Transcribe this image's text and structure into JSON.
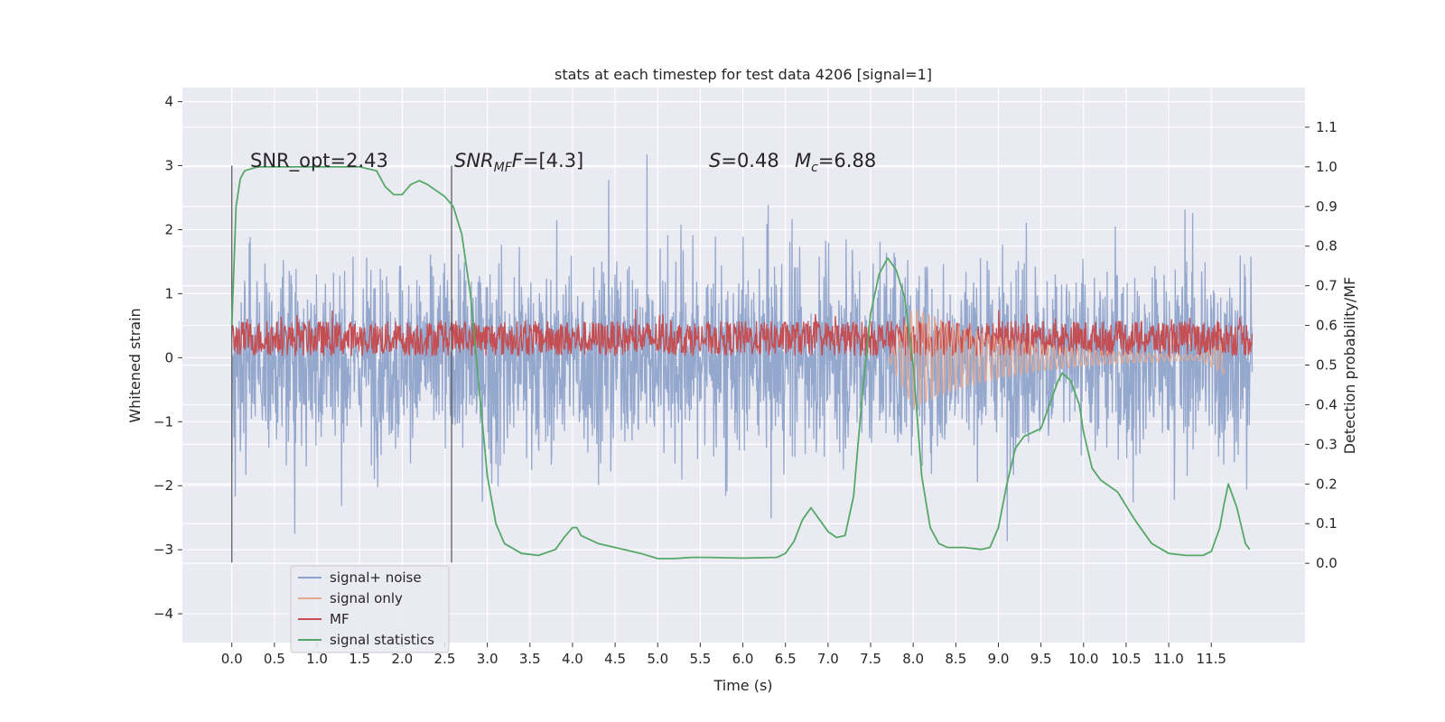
{
  "chart_data": {
    "type": "line",
    "title": "stats at each timestep for test data 4206 [signal=1]",
    "xlabel": "Time (s)",
    "ylabel": "Whitened strain",
    "ylabel_right": "Detection probability/MF",
    "xlim": [
      -0.58,
      12.6
    ],
    "ylim": [
      -4.45,
      4.22
    ],
    "ylim_right": [
      -0.2,
      1.2
    ],
    "x_ticks": [
      0.0,
      0.5,
      1.0,
      1.5,
      2.0,
      2.5,
      3.0,
      3.5,
      4.0,
      4.5,
      5.0,
      5.5,
      6.0,
      6.5,
      7.0,
      7.5,
      8.0,
      8.5,
      9.0,
      9.5,
      10.0,
      10.5,
      11.0,
      11.5
    ],
    "x_tick_labels": [
      "0.0",
      "0.5",
      "1.0",
      "1.5",
      "2.0",
      "2.5",
      "3.0",
      "3.5",
      "4.0",
      "4.5",
      "5.0",
      "5.5",
      "6.0",
      "6.5",
      "7.0",
      "7.5",
      "8.0",
      "8.5",
      "9.0",
      "9.5",
      "10.0",
      "10.5",
      "11.0",
      "11.5"
    ],
    "y_ticks": [
      4,
      3,
      2,
      1,
      0,
      -1,
      -2,
      -3,
      -4
    ],
    "y_tick_labels": [
      "4",
      "3",
      "2",
      "1",
      "0",
      "−1",
      "−2",
      "−3",
      "−4"
    ],
    "y_right_ticks": [
      1.1,
      1.0,
      0.9,
      0.8,
      0.7,
      0.6,
      0.5,
      0.4,
      0.3,
      0.2,
      0.1,
      0.0
    ],
    "y_right_tick_labels": [
      "1.1",
      "1.0",
      "0.9",
      "0.8",
      "0.7",
      "0.6",
      "0.5",
      "0.4",
      "0.3",
      "0.2",
      "0.1",
      "0.0"
    ],
    "grid": true,
    "legend_position": "lower-left",
    "vlines": [
      {
        "x": 0.0,
        "ymin": -3.2,
        "ymax": 3.0
      },
      {
        "x": 2.58,
        "ymin": -3.2,
        "ymax": 3.0
      }
    ],
    "annotations": {
      "snr_opt": "SNR_opt=2.43",
      "snr_mf_sym": "SNR",
      "snr_mf_sub": "MF",
      "snr_mf_sym2": "F",
      "snr_mf_val": "=[4.3]",
      "s_sym": "S",
      "s_val": "=0.48",
      "mc_sym": "M",
      "mc_sub": "c",
      "mc_val": "=6.88"
    },
    "series": [
      {
        "name": "signal+ noise",
        "color": "#8fa3ca",
        "axis": "left",
        "x_range": [
          0.0,
          11.98
        ],
        "envelope": "noise, approx. ±2 typical, spikes to about ±3.8"
      },
      {
        "name": "signal only",
        "color": "#e8a88e",
        "axis": "left",
        "x_range": [
          7.7,
          11.65
        ],
        "envelope": "chirp rising to about 0.8 near 7.9 s, decaying near 0"
      },
      {
        "name": "MF",
        "color": "#c44e52",
        "axis": "left",
        "x_range": [
          0.0,
          11.98
        ],
        "envelope": "band between about 0 and 0.7"
      },
      {
        "name": "signal statistics",
        "color": "#55a868",
        "axis": "right",
        "x": [
          0.0,
          0.05,
          0.1,
          0.15,
          0.3,
          0.5,
          1.0,
          1.5,
          1.7,
          1.8,
          1.9,
          2.0,
          2.1,
          2.2,
          2.3,
          2.4,
          2.5,
          2.6,
          2.7,
          2.8,
          2.9,
          3.0,
          3.1,
          3.2,
          3.4,
          3.6,
          3.8,
          3.9,
          4.0,
          4.05,
          4.1,
          4.3,
          4.5,
          4.8,
          5.0,
          5.2,
          5.4,
          5.6,
          6.0,
          6.4,
          6.5,
          6.6,
          6.7,
          6.8,
          6.9,
          7.0,
          7.1,
          7.2,
          7.3,
          7.4,
          7.5,
          7.6,
          7.7,
          7.8,
          7.9,
          8.0,
          8.1,
          8.2,
          8.3,
          8.4,
          8.6,
          8.8,
          8.9,
          9.0,
          9.1,
          9.2,
          9.3,
          9.4,
          9.5,
          9.6,
          9.7,
          9.75,
          9.85,
          9.95,
          10.0,
          10.1,
          10.2,
          10.4,
          10.6,
          10.8,
          11.0,
          11.2,
          11.4,
          11.5,
          11.6,
          11.65,
          11.7,
          11.8,
          11.9,
          11.95
        ],
        "y": [
          0.6,
          0.9,
          0.97,
          0.99,
          1.0,
          1.0,
          1.0,
          1.0,
          0.99,
          0.95,
          0.93,
          0.93,
          0.955,
          0.965,
          0.955,
          0.94,
          0.925,
          0.9,
          0.83,
          0.68,
          0.45,
          0.22,
          0.1,
          0.05,
          0.025,
          0.02,
          0.035,
          0.065,
          0.09,
          0.09,
          0.07,
          0.05,
          0.04,
          0.025,
          0.012,
          0.012,
          0.015,
          0.015,
          0.013,
          0.015,
          0.025,
          0.055,
          0.11,
          0.14,
          0.11,
          0.08,
          0.065,
          0.07,
          0.17,
          0.42,
          0.63,
          0.73,
          0.77,
          0.74,
          0.67,
          0.5,
          0.22,
          0.09,
          0.05,
          0.04,
          0.04,
          0.035,
          0.04,
          0.09,
          0.2,
          0.29,
          0.32,
          0.33,
          0.34,
          0.4,
          0.46,
          0.48,
          0.46,
          0.4,
          0.33,
          0.24,
          0.21,
          0.18,
          0.11,
          0.05,
          0.025,
          0.02,
          0.02,
          0.03,
          0.09,
          0.15,
          0.2,
          0.14,
          0.05,
          0.035
        ]
      }
    ]
  }
}
